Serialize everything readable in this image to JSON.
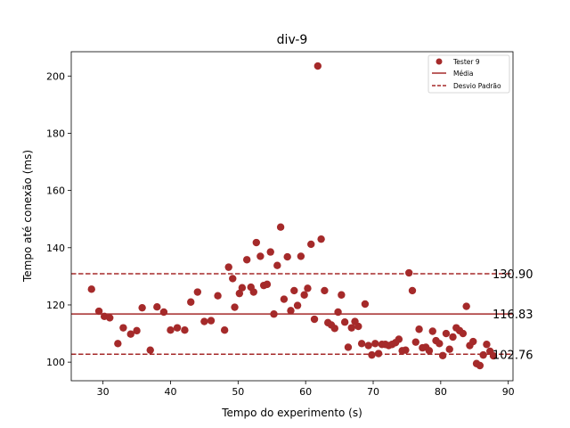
{
  "chart_data": {
    "type": "scatter",
    "title": "div-9",
    "xlabel": "Tempo do experimento (s)",
    "ylabel": "Tempo até conexão (ms)",
    "xlim": [
      25.3,
      90.7
    ],
    "ylim": [
      93.5,
      208.5
    ],
    "xticks": [
      30,
      40,
      50,
      60,
      70,
      80,
      90
    ],
    "yticks": [
      100,
      120,
      140,
      160,
      180,
      200
    ],
    "legend": {
      "placement": "top-right",
      "entries": [
        "Tester 9",
        "Média",
        "Desvio Padrão"
      ]
    },
    "colors": {
      "series": "#a52a2a"
    },
    "lines": {
      "mean": 116.83,
      "upper": 130.9,
      "lower": 102.76,
      "mean_label": "116.83",
      "upper_label": "130.90",
      "lower_label": "102.76"
    },
    "series": [
      {
        "name": "Tester 9",
        "points": [
          [
            28.3,
            125.5
          ],
          [
            29.4,
            117.8
          ],
          [
            30.2,
            116.0
          ],
          [
            31.0,
            115.5
          ],
          [
            32.2,
            106.5
          ],
          [
            33.0,
            112.0
          ],
          [
            34.1,
            109.8
          ],
          [
            35.0,
            111.0
          ],
          [
            35.8,
            119.0
          ],
          [
            37.0,
            104.2
          ],
          [
            38.0,
            119.3
          ],
          [
            39.0,
            117.5
          ],
          [
            40.0,
            111.2
          ],
          [
            41.0,
            112.0
          ],
          [
            42.1,
            111.2
          ],
          [
            43.0,
            121.0
          ],
          [
            44.0,
            124.5
          ],
          [
            45.0,
            114.2
          ],
          [
            46.0,
            114.5
          ],
          [
            47.0,
            123.2
          ],
          [
            48.0,
            111.2
          ],
          [
            48.6,
            133.2
          ],
          [
            49.2,
            129.2
          ],
          [
            49.5,
            119.2
          ],
          [
            50.2,
            124.0
          ],
          [
            50.6,
            126.0
          ],
          [
            51.3,
            135.8
          ],
          [
            51.9,
            126.2
          ],
          [
            52.3,
            124.5
          ],
          [
            52.7,
            141.8
          ],
          [
            53.3,
            137.0
          ],
          [
            53.8,
            126.8
          ],
          [
            54.3,
            127.2
          ],
          [
            54.8,
            138.5
          ],
          [
            55.3,
            116.8
          ],
          [
            55.8,
            133.8
          ],
          [
            56.3,
            147.2
          ],
          [
            56.8,
            122.0
          ],
          [
            57.3,
            136.8
          ],
          [
            57.8,
            118.0
          ],
          [
            58.3,
            125.0
          ],
          [
            58.8,
            119.8
          ],
          [
            59.3,
            137.0
          ],
          [
            59.8,
            123.5
          ],
          [
            60.3,
            125.8
          ],
          [
            60.8,
            141.2
          ],
          [
            61.3,
            115.0
          ],
          [
            61.8,
            203.5
          ],
          [
            62.3,
            143.0
          ],
          [
            62.8,
            125.0
          ],
          [
            63.3,
            113.8
          ],
          [
            63.8,
            113.0
          ],
          [
            64.3,
            111.8
          ],
          [
            64.8,
            117.5
          ],
          [
            65.3,
            123.5
          ],
          [
            65.8,
            114.0
          ],
          [
            66.3,
            105.2
          ],
          [
            66.8,
            112.0
          ],
          [
            67.3,
            114.2
          ],
          [
            67.8,
            112.5
          ],
          [
            68.3,
            106.5
          ],
          [
            68.8,
            120.3
          ],
          [
            69.3,
            105.8
          ],
          [
            69.8,
            102.5
          ],
          [
            70.3,
            106.5
          ],
          [
            70.8,
            103.0
          ],
          [
            71.3,
            106.2
          ],
          [
            71.8,
            106.2
          ],
          [
            72.3,
            105.8
          ],
          [
            72.8,
            106.2
          ],
          [
            73.3,
            106.8
          ],
          [
            73.8,
            108.0
          ],
          [
            74.3,
            104.0
          ],
          [
            74.8,
            104.2
          ],
          [
            75.3,
            131.2
          ],
          [
            75.8,
            125.0
          ],
          [
            76.3,
            107.0
          ],
          [
            76.8,
            111.5
          ],
          [
            77.3,
            105.0
          ],
          [
            77.8,
            105.2
          ],
          [
            78.3,
            104.0
          ],
          [
            78.8,
            110.8
          ],
          [
            79.3,
            107.5
          ],
          [
            79.8,
            106.5
          ],
          [
            80.3,
            102.3
          ],
          [
            80.8,
            110.0
          ],
          [
            81.3,
            104.5
          ],
          [
            81.8,
            108.8
          ],
          [
            82.3,
            112.0
          ],
          [
            82.8,
            111.0
          ],
          [
            83.3,
            110.0
          ],
          [
            83.8,
            119.5
          ],
          [
            84.3,
            105.8
          ],
          [
            84.8,
            107.2
          ],
          [
            85.3,
            99.5
          ],
          [
            85.8,
            98.8
          ],
          [
            86.3,
            102.5
          ],
          [
            86.8,
            106.2
          ],
          [
            87.3,
            103.8
          ],
          [
            87.8,
            102.2
          ]
        ]
      }
    ]
  }
}
